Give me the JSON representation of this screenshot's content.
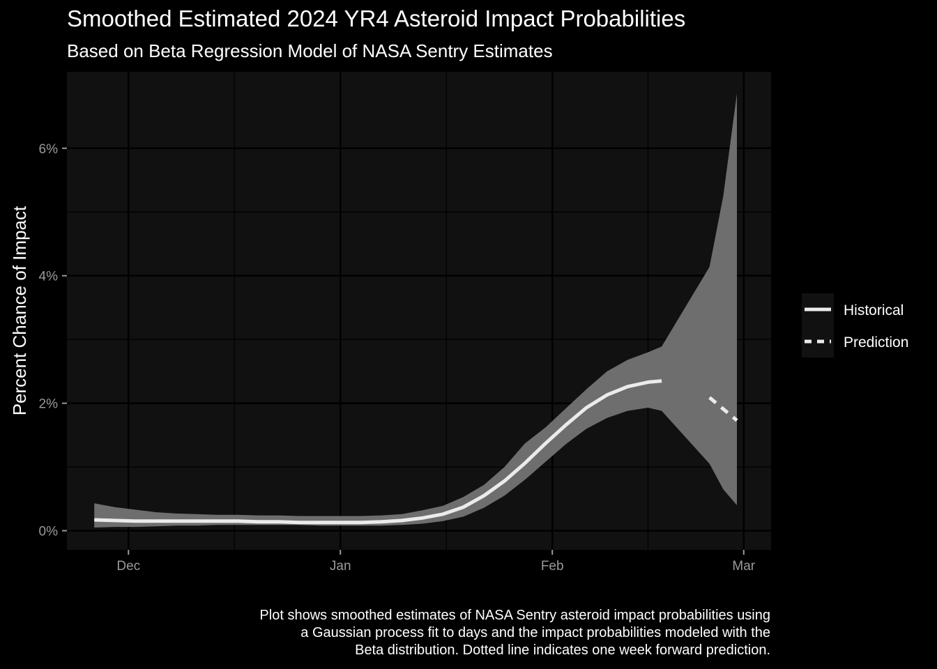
{
  "title": "Smoothed Estimated 2024 YR4 Asteroid Impact Probabilities",
  "subtitle": "Based on Beta Regression Model of NASA Sentry Estimates",
  "caption_lines": [
    "Plot shows smoothed estimates of NASA Sentry asteroid impact probabilities using",
    "a Gaussian process fit to days and the impact probabilities modeled with the",
    "Beta distribution. Dotted line indicates one week forward prediction."
  ],
  "colors": {
    "background": "#000000",
    "panel": "#111111",
    "grid": "#000000",
    "ribbon": "#6e6e6e",
    "line": "#ebebeb",
    "tick_text": "#9a9a9a"
  },
  "chart_data": {
    "type": "line",
    "title": "Smoothed Estimated 2024 YR4 Asteroid Impact Probabilities",
    "subtitle": "Based on Beta Regression Model of NASA Sentry Estimates",
    "xlabel": "",
    "ylabel": "Percent Chance of Impact",
    "x_ticks": [
      {
        "date": "2024-12-01",
        "label": "Dec"
      },
      {
        "date": "2025-01-01",
        "label": "Jan"
      },
      {
        "date": "2025-02-01",
        "label": "Feb"
      },
      {
        "date": "2025-03-01",
        "label": "Mar"
      }
    ],
    "y_ticks": [
      {
        "value": 0,
        "label": "0%"
      },
      {
        "value": 2,
        "label": "2%"
      },
      {
        "value": 4,
        "label": "4%"
      },
      {
        "value": 6,
        "label": "6%"
      }
    ],
    "xlim": [
      "2024-11-22",
      "2025-03-05"
    ],
    "ylim": [
      -0.3,
      7.2
    ],
    "grid": true,
    "legend_position": "right",
    "series": [
      {
        "name": "Historical",
        "linetype": "solid",
        "points": [
          {
            "x": "2024-11-26",
            "y": 0.17,
            "lower": 0.05,
            "upper": 0.43
          },
          {
            "x": "2024-11-29",
            "y": 0.16,
            "lower": 0.06,
            "upper": 0.37
          },
          {
            "x": "2024-12-02",
            "y": 0.15,
            "lower": 0.06,
            "upper": 0.33
          },
          {
            "x": "2024-12-05",
            "y": 0.15,
            "lower": 0.07,
            "upper": 0.29
          },
          {
            "x": "2024-12-08",
            "y": 0.15,
            "lower": 0.08,
            "upper": 0.27
          },
          {
            "x": "2024-12-11",
            "y": 0.15,
            "lower": 0.08,
            "upper": 0.26
          },
          {
            "x": "2024-12-14",
            "y": 0.15,
            "lower": 0.09,
            "upper": 0.25
          },
          {
            "x": "2024-12-17",
            "y": 0.15,
            "lower": 0.09,
            "upper": 0.25
          },
          {
            "x": "2024-12-20",
            "y": 0.14,
            "lower": 0.09,
            "upper": 0.24
          },
          {
            "x": "2024-12-23",
            "y": 0.14,
            "lower": 0.09,
            "upper": 0.24
          },
          {
            "x": "2024-12-26",
            "y": 0.13,
            "lower": 0.09,
            "upper": 0.23
          },
          {
            "x": "2024-12-29",
            "y": 0.13,
            "lower": 0.08,
            "upper": 0.23
          },
          {
            "x": "2025-01-01",
            "y": 0.13,
            "lower": 0.08,
            "upper": 0.23
          },
          {
            "x": "2025-01-04",
            "y": 0.13,
            "lower": 0.08,
            "upper": 0.23
          },
          {
            "x": "2025-01-07",
            "y": 0.14,
            "lower": 0.08,
            "upper": 0.24
          },
          {
            "x": "2025-01-10",
            "y": 0.16,
            "lower": 0.09,
            "upper": 0.26
          },
          {
            "x": "2025-01-13",
            "y": 0.2,
            "lower": 0.11,
            "upper": 0.32
          },
          {
            "x": "2025-01-16",
            "y": 0.26,
            "lower": 0.15,
            "upper": 0.39
          },
          {
            "x": "2025-01-19",
            "y": 0.37,
            "lower": 0.22,
            "upper": 0.53
          },
          {
            "x": "2025-01-22",
            "y": 0.55,
            "lower": 0.36,
            "upper": 0.72
          },
          {
            "x": "2025-01-25",
            "y": 0.78,
            "lower": 0.55,
            "upper": 1.0
          },
          {
            "x": "2025-01-28",
            "y": 1.06,
            "lower": 0.8,
            "upper": 1.37
          },
          {
            "x": "2025-01-31",
            "y": 1.37,
            "lower": 1.08,
            "upper": 1.62
          },
          {
            "x": "2025-02-03",
            "y": 1.66,
            "lower": 1.36,
            "upper": 1.92
          },
          {
            "x": "2025-02-06",
            "y": 1.93,
            "lower": 1.6,
            "upper": 2.22
          },
          {
            "x": "2025-02-09",
            "y": 2.13,
            "lower": 1.77,
            "upper": 2.5
          },
          {
            "x": "2025-02-12",
            "y": 2.26,
            "lower": 1.88,
            "upper": 2.68
          },
          {
            "x": "2025-02-15",
            "y": 2.33,
            "lower": 1.93,
            "upper": 2.8
          },
          {
            "x": "2025-02-17",
            "y": 2.35,
            "lower": 1.88,
            "upper": 2.89
          }
        ]
      },
      {
        "name": "Prediction",
        "linetype": "dashed",
        "points": [
          {
            "x": "2025-02-17",
            "lower": 1.88,
            "upper": 2.89
          },
          {
            "x": "2025-02-24",
            "y": 2.09,
            "lower": 1.05,
            "upper": 4.14
          },
          {
            "x": "2025-02-26",
            "lower": 0.65,
            "upper": 5.25
          },
          {
            "x": "2025-02-28",
            "y": 1.73,
            "lower": 0.4,
            "upper": 6.86
          }
        ]
      }
    ]
  }
}
